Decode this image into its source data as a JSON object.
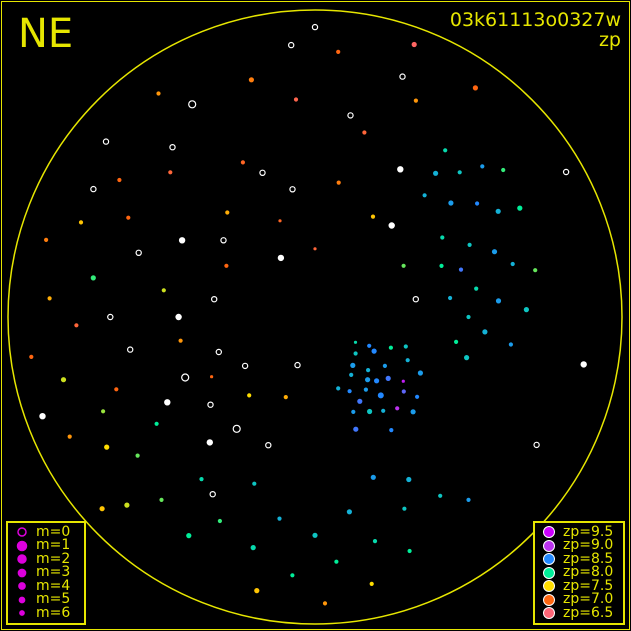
{
  "header": {
    "direction": "NE",
    "title": "03k61113o0327w",
    "subtitle": "zp"
  },
  "colors": {
    "frame": "#e6e600",
    "text": "#e6e600",
    "no_measure": "#ffffff"
  },
  "legend_m": {
    "items": [
      {
        "label": "m=0",
        "m": 0
      },
      {
        "label": "m=1",
        "m": 1
      },
      {
        "label": "m=2",
        "m": 2
      },
      {
        "label": "m=3",
        "m": 3
      },
      {
        "label": "m=4",
        "m": 4
      },
      {
        "label": "m=5",
        "m": 5
      },
      {
        "label": "m=6",
        "m": 6
      }
    ],
    "color": "#dd00dd"
  },
  "legend_zp": {
    "items": [
      {
        "label": "zp=9.5",
        "zp": 9.5,
        "color": "#cc00ff"
      },
      {
        "label": "zp=9.0",
        "zp": 9.0,
        "color": "#bb33ee"
      },
      {
        "label": "zp=8.5",
        "zp": 8.5,
        "color": "#2288ff"
      },
      {
        "label": "zp=8.0",
        "zp": 8.0,
        "color": "#00ee99"
      },
      {
        "label": "zp=7.5",
        "zp": 7.5,
        "color": "#ffdd00"
      },
      {
        "label": "zp=7.0",
        "zp": 7.0,
        "color": "#ff6611"
      },
      {
        "label": "zp=6.5",
        "zp": 6.5,
        "color": "#ff6677"
      }
    ]
  },
  "chart_data": {
    "type": "scatter",
    "projection": "all-sky polar (azimuth, zenith angle 0-90)",
    "za_range": [
      0,
      90
    ],
    "fields": [
      "azimuth_deg",
      "zenith_angle_deg",
      "zp",
      "m"
    ],
    "points": [
      [
        120,
        20,
        8.5,
        3
      ],
      [
        125,
        25,
        8.4,
        4
      ],
      [
        130,
        28,
        8.6,
        3
      ],
      [
        135,
        22,
        8.3,
        4
      ],
      [
        140,
        30,
        8.5,
        2
      ],
      [
        145,
        26,
        8.4,
        4
      ],
      [
        150,
        32,
        8.2,
        3
      ],
      [
        155,
        24,
        8.5,
        4
      ],
      [
        160,
        35,
        8.6,
        3
      ],
      [
        115,
        30,
        8.3,
        4
      ],
      [
        118,
        35,
        8.4,
        3
      ],
      [
        128,
        38,
        8.5,
        4
      ],
      [
        138,
        36,
        9.0,
        4
      ],
      [
        142,
        18,
        8.4,
        3
      ],
      [
        148,
        20,
        8.3,
        4
      ],
      [
        132,
        16,
        8.2,
        4
      ],
      [
        122,
        14,
        8.1,
        5
      ],
      [
        152,
        28,
        8.6,
        3
      ],
      [
        158,
        30,
        8.4,
        4
      ],
      [
        126,
        32,
        9.2,
        5
      ],
      [
        136,
        26,
        8.5,
        3
      ],
      [
        144,
        34,
        8.3,
        4
      ],
      [
        112,
        24,
        8.0,
        4
      ],
      [
        108,
        28,
        8.2,
        4
      ],
      [
        134,
        40,
        8.4,
        3
      ],
      [
        146,
        40,
        8.5,
        4
      ],
      [
        162,
        22,
        8.3,
        4
      ],
      [
        118,
        18,
        8.5,
        4
      ],
      [
        130,
        34,
        8.7,
        4
      ],
      [
        140,
        24,
        8.4,
        3
      ],
      [
        40,
        55,
        8.3,
        3
      ],
      [
        45,
        60,
        8.2,
        4
      ],
      [
        50,
        52,
        8.4,
        3
      ],
      [
        55,
        58,
        8.5,
        4
      ],
      [
        60,
        62,
        8.3,
        3
      ],
      [
        65,
        50,
        8.2,
        4
      ],
      [
        70,
        56,
        8.4,
        3
      ],
      [
        75,
        60,
        8.3,
        4
      ],
      [
        80,
        48,
        8.1,
        4
      ],
      [
        85,
        54,
        8.4,
        3
      ],
      [
        90,
        45,
        8.2,
        4
      ],
      [
        95,
        50,
        8.3,
        3
      ],
      [
        100,
        42,
        8.0,
        4
      ],
      [
        105,
        46,
        8.2,
        3
      ],
      [
        48,
        66,
        8.4,
        4
      ],
      [
        58,
        44,
        8.1,
        4
      ],
      [
        68,
        40,
        8.0,
        4
      ],
      [
        78,
        66,
        7.8,
        4
      ],
      [
        88,
        62,
        8.2,
        3
      ],
      [
        98,
        58,
        8.4,
        4
      ],
      [
        42,
        48,
        8.3,
        4
      ],
      [
        52,
        70,
        7.9,
        4
      ],
      [
        62,
        68,
        8.0,
        3
      ],
      [
        72,
        45,
        8.6,
        4
      ],
      [
        82,
        40,
        8.3,
        4
      ],
      [
        38,
        62,
        8.1,
        4
      ],
      [
        150,
        55,
        8.3,
        3
      ],
      [
        155,
        62,
        8.2,
        4
      ],
      [
        160,
        50,
        8.4,
        3
      ],
      [
        165,
        68,
        8.1,
        4
      ],
      [
        170,
        58,
        8.3,
        3
      ],
      [
        175,
        72,
        8.0,
        4
      ],
      [
        180,
        64,
        8.2,
        3
      ],
      [
        185,
        76,
        8.0,
        4
      ],
      [
        190,
        60,
        8.3,
        4
      ],
      [
        195,
        70,
        8.1,
        3
      ],
      [
        200,
        52,
        8.2,
        4
      ],
      [
        205,
        66,
        7.9,
        4
      ],
      [
        210,
        74,
        8.0,
        3
      ],
      [
        215,
        58,
        8.1,
        4
      ],
      [
        220,
        70,
        7.8,
        4
      ],
      [
        225,
        78,
        7.6,
        3
      ],
      [
        168,
        80,
        7.5,
        4
      ],
      [
        178,
        84,
        7.2,
        4
      ],
      [
        192,
        82,
        7.4,
        3
      ],
      [
        158,
        74,
        8.0,
        4
      ],
      [
        145,
        64,
        8.2,
        4
      ],
      [
        140,
        70,
        8.4,
        4
      ],
      [
        232,
        66,
        7.8,
        4
      ],
      [
        238,
        72,
        7.5,
        3
      ],
      [
        244,
        80,
        7.2,
        4
      ],
      [
        250,
        62,
        7.0,
        4
      ],
      [
        256,
        76,
        7.6,
        3
      ],
      [
        262,
        84,
        7.0,
        4
      ],
      [
        268,
        70,
        6.8,
        4
      ],
      [
        274,
        78,
        7.3,
        4
      ],
      [
        280,
        66,
        7.9,
        3
      ],
      [
        286,
        82,
        7.1,
        4
      ],
      [
        292,
        74,
        7.4,
        4
      ],
      [
        298,
        62,
        7.0,
        4
      ],
      [
        236,
        56,
        8.0,
        4
      ],
      [
        246,
        68,
        7.7,
        4
      ],
      [
        228,
        84,
        7.4,
        3
      ],
      [
        305,
        70,
        7.0,
        4
      ],
      [
        315,
        60,
        6.8,
        4
      ],
      [
        325,
        80,
        7.2,
        4
      ],
      [
        335,
        50,
        6.9,
        4
      ],
      [
        345,
        72,
        7.1,
        3
      ],
      [
        355,
        64,
        6.7,
        4
      ],
      [
        5,
        78,
        7.0,
        4
      ],
      [
        15,
        56,
        6.8,
        4
      ],
      [
        25,
        70,
        7.2,
        4
      ],
      [
        35,
        82,
        7.0,
        3
      ],
      [
        320,
        40,
        7.3,
        4
      ],
      [
        340,
        30,
        6.9,
        5
      ],
      [
        10,
        40,
        7.1,
        4
      ],
      [
        30,
        34,
        7.4,
        4
      ],
      [
        0,
        20,
        6.8,
        5
      ],
      [
        300,
        30,
        7.0,
        4
      ],
      [
        280,
        45,
        7.6,
        4
      ],
      [
        260,
        40,
        7.2,
        4
      ],
      [
        240,
        35,
        7.0,
        5
      ],
      [
        220,
        30,
        7.5,
        4
      ],
      [
        200,
        25,
        7.3,
        4
      ],
      [
        60,
        30,
        7.8,
        4
      ],
      [
        20,
        85,
        6.6,
        3
      ],
      [
        0,
        85,
        null,
        1
      ],
      [
        20,
        75,
        null,
        1
      ],
      [
        40,
        35,
        null,
        2
      ],
      [
        80,
        30,
        null,
        1
      ],
      [
        100,
        80,
        null,
        2
      ],
      [
        120,
        75,
        null,
        1
      ],
      [
        200,
        40,
        null,
        1
      ],
      [
        210,
        60,
        null,
        1
      ],
      [
        220,
        48,
        null,
        2
      ],
      [
        230,
        40,
        null,
        1
      ],
      [
        240,
        50,
        null,
        2
      ],
      [
        250,
        30,
        null,
        1
      ],
      [
        260,
        55,
        null,
        1
      ],
      [
        270,
        40,
        null,
        2
      ],
      [
        280,
        30,
        null,
        1
      ],
      [
        290,
        55,
        null,
        1
      ],
      [
        300,
        45,
        null,
        2
      ],
      [
        310,
        35,
        null,
        1
      ],
      [
        320,
        65,
        null,
        1
      ],
      [
        330,
        20,
        null,
        2
      ],
      [
        340,
        45,
        null,
        1
      ],
      [
        350,
        38,
        null,
        1
      ],
      [
        10,
        60,
        null,
        1
      ],
      [
        30,
        50,
        null,
        2
      ],
      [
        300,
        75,
        null,
        1
      ],
      [
        270,
        60,
        null,
        1
      ],
      [
        250,
        85,
        null,
        2
      ],
      [
        200,
        15,
        null,
        1
      ],
      [
        60,
        85,
        null,
        1
      ],
      [
        355,
        80,
        null,
        1
      ],
      [
        235,
        25,
        null,
        1
      ],
      [
        310,
        80,
        null,
        1
      ],
      [
        215,
        40,
        null,
        0
      ],
      [
        245,
        42,
        null,
        0
      ],
      [
        330,
        72,
        null,
        0
      ]
    ]
  }
}
